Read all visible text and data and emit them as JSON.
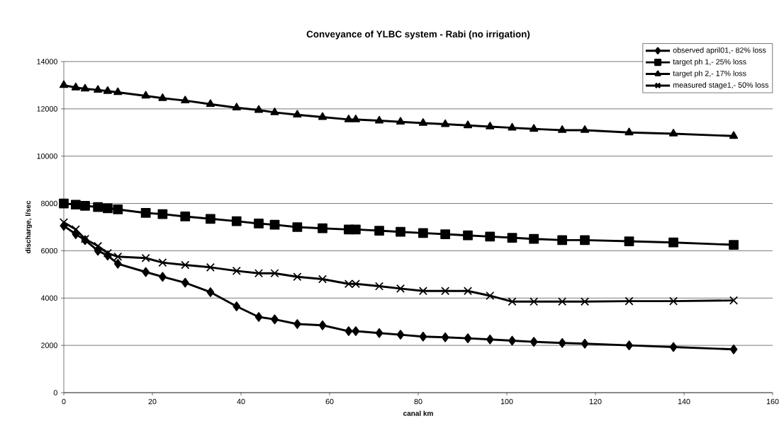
{
  "chart_data": {
    "type": "line",
    "title": "Conveyance of YLBC system - Rabi (no irrigation)",
    "xlabel": "canal km",
    "ylabel": "discharge, l/sec",
    "x": [
      0,
      2.7,
      4.8,
      7.7,
      9.9,
      12.2,
      18.5,
      22.3,
      27.4,
      33.1,
      39,
      44,
      47.6,
      52.7,
      58.4,
      64.3,
      65.9,
      71.2,
      76,
      81.1,
      86.1,
      91.2,
      96.2,
      101.2,
      106.1,
      112.5,
      117.6,
      127.6,
      137.6,
      151.2
    ],
    "series": [
      {
        "name": "observed april01,- 82% loss",
        "color": "#000000",
        "marker": "diamond",
        "values": [
          7050,
          6700,
          6450,
          6000,
          5800,
          5450,
          5100,
          4900,
          4650,
          4250,
          3650,
          3200,
          3100,
          2900,
          2850,
          2600,
          2600,
          2520,
          2450,
          2370,
          2340,
          2300,
          2250,
          2200,
          2150,
          2100,
          2070,
          2000,
          1930,
          1830
        ]
      },
      {
        "name": "target ph 1,- 25% loss",
        "color": "#000000",
        "marker": "square",
        "values": [
          8000,
          7950,
          7900,
          7850,
          7800,
          7750,
          7600,
          7550,
          7450,
          7350,
          7250,
          7150,
          7100,
          7000,
          6950,
          6900,
          6900,
          6850,
          6800,
          6750,
          6700,
          6650,
          6600,
          6550,
          6500,
          6450,
          6450,
          6400,
          6350,
          6250
        ]
      },
      {
        "name": "target ph 2,- 17% loss",
        "color": "#000000",
        "marker": "triangle",
        "values": [
          13000,
          12900,
          12850,
          12800,
          12750,
          12700,
          12550,
          12450,
          12350,
          12200,
          12050,
          11950,
          11850,
          11750,
          11650,
          11550,
          11550,
          11500,
          11450,
          11400,
          11350,
          11300,
          11250,
          11200,
          11150,
          11100,
          11100,
          11000,
          10950,
          10850
        ]
      },
      {
        "name": "measured stage1,- 50% loss",
        "color": "#000000",
        "marker": "cross",
        "values": [
          7200,
          6900,
          6500,
          6200,
          5900,
          5750,
          5690,
          5500,
          5400,
          5300,
          5150,
          5050,
          5050,
          4900,
          4800,
          4600,
          4600,
          4500,
          4400,
          4300,
          4300,
          4300,
          4100,
          3850,
          3850,
          3850,
          3850,
          3870,
          3870,
          3900
        ]
      }
    ],
    "xlim": [
      0,
      160
    ],
    "xticks": [
      0,
      20,
      40,
      60,
      80,
      100,
      120,
      140,
      160
    ],
    "ylim": [
      0,
      14000
    ],
    "yticks": [
      0,
      2000,
      4000,
      6000,
      8000,
      10000,
      12000,
      14000
    ],
    "grid": "y",
    "legend": "top right",
    "line_style": "solid"
  }
}
